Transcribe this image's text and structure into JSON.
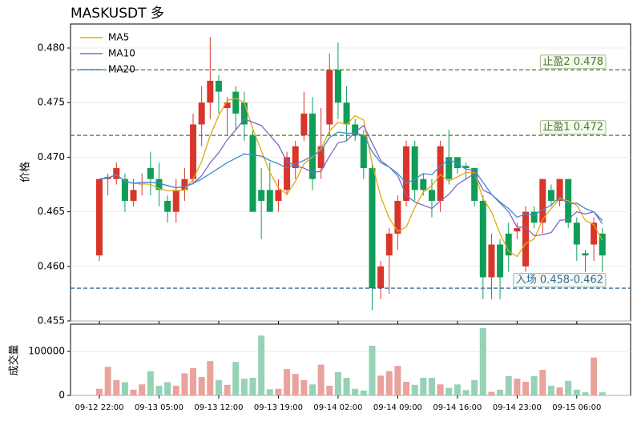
{
  "chart_data": {
    "type": "candlestick",
    "title": "MASKUSDT 多",
    "ylabel": "价格",
    "x": [
      "09-12 22:00",
      "09-12 23:00",
      "09-13 00:00",
      "09-13 01:00",
      "09-13 02:00",
      "09-13 03:00",
      "09-13 04:00",
      "09-13 05:00",
      "09-13 06:00",
      "09-13 07:00",
      "09-13 08:00",
      "09-13 09:00",
      "09-13 10:00",
      "09-13 11:00",
      "09-13 12:00",
      "09-13 13:00",
      "09-13 14:00",
      "09-13 15:00",
      "09-13 16:00",
      "09-13 17:00",
      "09-13 18:00",
      "09-13 19:00",
      "09-13 20:00",
      "09-13 21:00",
      "09-13 22:00",
      "09-13 23:00",
      "09-14 00:00",
      "09-14 01:00",
      "09-14 02:00",
      "09-14 03:00",
      "09-14 04:00",
      "09-14 05:00",
      "09-14 06:00",
      "09-14 07:00",
      "09-14 08:00",
      "09-14 09:00",
      "09-14 10:00",
      "09-14 11:00",
      "09-14 12:00",
      "09-14 13:00",
      "09-14 14:00",
      "09-14 15:00",
      "09-14 16:00",
      "09-14 17:00",
      "09-14 18:00",
      "09-14 19:00",
      "09-14 20:00",
      "09-14 21:00",
      "09-14 22:00",
      "09-14 23:00",
      "09-15 00:00",
      "09-15 01:00",
      "09-15 02:00",
      "09-15 03:00",
      "09-15 04:00",
      "09-15 05:00",
      "09-15 06:00",
      "09-15 07:00",
      "09-15 08:00",
      "09-15 09:00"
    ],
    "xticks": [
      "09-12 22:00",
      "09-13 05:00",
      "09-13 12:00",
      "09-13 19:00",
      "09-14 02:00",
      "09-14 09:00",
      "09-14 16:00",
      "09-14 23:00",
      "09-15 06:00"
    ],
    "open": [
      0.461,
      0.468,
      0.468,
      0.468,
      0.466,
      0.4675,
      0.469,
      0.468,
      0.466,
      0.465,
      0.467,
      0.468,
      0.473,
      0.475,
      0.477,
      0.4745,
      0.476,
      0.475,
      0.472,
      0.467,
      0.467,
      0.466,
      0.467,
      0.469,
      0.472,
      0.474,
      0.469,
      0.473,
      0.478,
      0.475,
      0.473,
      0.472,
      0.469,
      0.458,
      0.461,
      0.463,
      0.466,
      0.471,
      0.468,
      0.467,
      0.466,
      0.47,
      0.47,
      0.4692,
      0.469,
      0.466,
      0.459,
      0.462,
      0.463,
      0.4632,
      0.46,
      0.465,
      0.464,
      0.467,
      0.466,
      0.468,
      0.464,
      0.4612,
      0.462,
      0.463
    ],
    "high": [
      0.468,
      0.4685,
      0.4695,
      0.4685,
      0.468,
      0.4685,
      0.4705,
      0.4695,
      0.4665,
      0.468,
      0.469,
      0.474,
      0.4765,
      0.481,
      0.4775,
      0.4755,
      0.4765,
      0.476,
      0.4725,
      0.469,
      0.4695,
      0.468,
      0.4705,
      0.4715,
      0.476,
      0.4755,
      0.4745,
      0.4795,
      0.4805,
      0.4765,
      0.4735,
      0.4725,
      0.4695,
      0.4605,
      0.4635,
      0.4665,
      0.4715,
      0.4715,
      0.4685,
      0.468,
      0.4715,
      0.4725,
      0.47,
      0.4695,
      0.469,
      0.4665,
      0.463,
      0.4625,
      0.464,
      0.464,
      0.4655,
      0.4655,
      0.468,
      0.4675,
      0.468,
      0.468,
      0.4645,
      0.4615,
      0.4645,
      0.4635
    ],
    "low": [
      0.4605,
      0.4665,
      0.4675,
      0.465,
      0.4655,
      0.4665,
      0.4665,
      0.4655,
      0.464,
      0.464,
      0.466,
      0.4675,
      0.471,
      0.4735,
      0.474,
      0.472,
      0.4725,
      0.4715,
      0.465,
      0.4625,
      0.465,
      0.465,
      0.4665,
      0.468,
      0.4715,
      0.467,
      0.468,
      0.472,
      0.4735,
      0.4715,
      0.4715,
      0.468,
      0.456,
      0.457,
      0.4575,
      0.4615,
      0.4655,
      0.466,
      0.4665,
      0.4645,
      0.465,
      0.4675,
      0.4685,
      0.468,
      0.4655,
      0.457,
      0.457,
      0.457,
      0.4595,
      0.4625,
      0.4595,
      0.4635,
      0.463,
      0.4655,
      0.4655,
      0.4635,
      0.4605,
      0.4595,
      0.4605,
      0.4595
    ],
    "close": [
      0.468,
      0.4682,
      0.469,
      0.466,
      0.467,
      0.4676,
      0.468,
      0.467,
      0.465,
      0.467,
      0.468,
      0.473,
      0.475,
      0.477,
      0.476,
      0.475,
      0.474,
      0.473,
      0.465,
      0.466,
      0.465,
      0.467,
      0.47,
      0.471,
      0.474,
      0.468,
      0.471,
      0.478,
      0.475,
      0.473,
      0.472,
      0.469,
      0.458,
      0.46,
      0.463,
      0.466,
      0.471,
      0.467,
      0.467,
      0.466,
      0.471,
      0.468,
      0.469,
      0.469,
      0.466,
      0.459,
      0.462,
      0.459,
      0.461,
      0.4635,
      0.465,
      0.464,
      0.468,
      0.466,
      0.468,
      0.464,
      0.462,
      0.461,
      0.464,
      0.461
    ],
    "up_color": "#d9352a",
    "down_color": "#0f9d58",
    "series": [
      {
        "name": "MA5",
        "color": "#e3a812",
        "values": [
          0.468,
          0.4681,
          0.4684,
          0.4678,
          0.4676,
          0.46756,
          0.46752,
          0.46712,
          0.46692,
          0.46692,
          0.467,
          0.468,
          0.4696,
          0.472,
          0.4738,
          0.4752,
          0.4754,
          0.475,
          0.4726,
          0.4706,
          0.4686,
          0.4672,
          0.4666,
          0.4678,
          0.4694,
          0.47,
          0.4708,
          0.4724,
          0.4732,
          0.473,
          0.4738,
          0.4734,
          0.4694,
          0.4664,
          0.4644,
          0.4632,
          0.4636,
          0.4654,
          0.4668,
          0.4674,
          0.4684,
          0.4678,
          0.4682,
          0.4686,
          0.4686,
          0.4662,
          0.465,
          0.463,
          0.4614,
          0.4609,
          0.4621,
          0.4625,
          0.4643,
          0.4653,
          0.4662,
          0.466,
          0.4656,
          0.4642,
          0.4638,
          0.4624
        ]
      },
      {
        "name": "MA10",
        "color": "#7d68c6",
        "values": [
          0.468,
          0.4681,
          0.4684,
          0.4678,
          0.4676,
          0.4677,
          0.4677,
          0.4676,
          0.4674,
          0.4672,
          0.4673,
          0.4676,
          0.4683,
          0.4695,
          0.4704,
          0.4716,
          0.4725,
          0.4735,
          0.4732,
          0.4729,
          0.472,
          0.4711,
          0.4696,
          0.4692,
          0.469,
          0.4686,
          0.4687,
          0.4701,
          0.4713,
          0.4715,
          0.4723,
          0.4729,
          0.4713,
          0.4697,
          0.4691,
          0.4683,
          0.4665,
          0.4659,
          0.4656,
          0.4653,
          0.466,
          0.4666,
          0.4675,
          0.468,
          0.4685,
          0.467,
          0.4666,
          0.4658,
          0.465,
          0.4636,
          0.4636,
          0.4628,
          0.4629,
          0.4631,
          0.4642,
          0.4643,
          0.465,
          0.4648,
          0.465,
          0.4642
        ]
      },
      {
        "name": "MA20",
        "color": "#3f8bd0",
        "values": [
          0.468,
          0.4681,
          0.4684,
          0.4678,
          0.4676,
          0.4677,
          0.4677,
          0.4676,
          0.4674,
          0.4672,
          0.4673,
          0.4676,
          0.468,
          0.4685,
          0.469,
          0.4695,
          0.4699,
          0.4703,
          0.4702,
          0.4701,
          0.4697,
          0.4694,
          0.469,
          0.4694,
          0.4697,
          0.4701,
          0.4706,
          0.4718,
          0.4723,
          0.4722,
          0.4722,
          0.472,
          0.4705,
          0.4695,
          0.4691,
          0.4685,
          0.4676,
          0.468,
          0.4685,
          0.4684,
          0.4692,
          0.4698,
          0.4694,
          0.4689,
          0.4688,
          0.4677,
          0.4666,
          0.4659,
          0.4653,
          0.4645,
          0.4648,
          0.4647,
          0.4652,
          0.4656,
          0.4664,
          0.4657,
          0.4658,
          0.4653,
          0.465,
          0.4639
        ]
      }
    ],
    "hlines": [
      {
        "value": 0.478,
        "label": "止盈2 0.478",
        "color": "#4b7a25"
      },
      {
        "value": 0.472,
        "label": "止盈1 0.472",
        "color": "#4b7a25"
      },
      {
        "value": 0.458,
        "label": "入场 0.458-0.462",
        "color": "#2e6c9c"
      }
    ],
    "ylim": [
      0.455,
      0.4822
    ],
    "yticks": [
      0.455,
      {
        "value": 0.46,
        "label": "0.460"
      },
      0.465,
      {
        "value": 0.47,
        "label": "0.470"
      },
      0.475,
      {
        "value": 0.48,
        "label": "0.480"
      }
    ],
    "grid": true,
    "legend": "upper-left",
    "volume": {
      "ylabel": "成交量",
      "values": [
        15000,
        65000,
        35000,
        30000,
        13000,
        25000,
        55000,
        22000,
        30000,
        22000,
        50000,
        62000,
        42000,
        78000,
        35000,
        24000,
        76000,
        38000,
        40000,
        136000,
        14000,
        15000,
        60000,
        49000,
        35000,
        25000,
        70000,
        22000,
        53000,
        40000,
        15000,
        11000,
        113000,
        45000,
        55000,
        67000,
        31000,
        24000,
        40000,
        40000,
        25000,
        17000,
        25000,
        12000,
        35000,
        153000,
        8000,
        13000,
        44000,
        38000,
        31000,
        44000,
        58000,
        22000,
        18000,
        33000,
        13000,
        7000,
        86000,
        7000
      ],
      "up_color": "#eaa29c",
      "down_color": "#96d2b5",
      "ylim": [
        0,
        162000
      ],
      "yticks": [
        0,
        100000
      ]
    }
  }
}
